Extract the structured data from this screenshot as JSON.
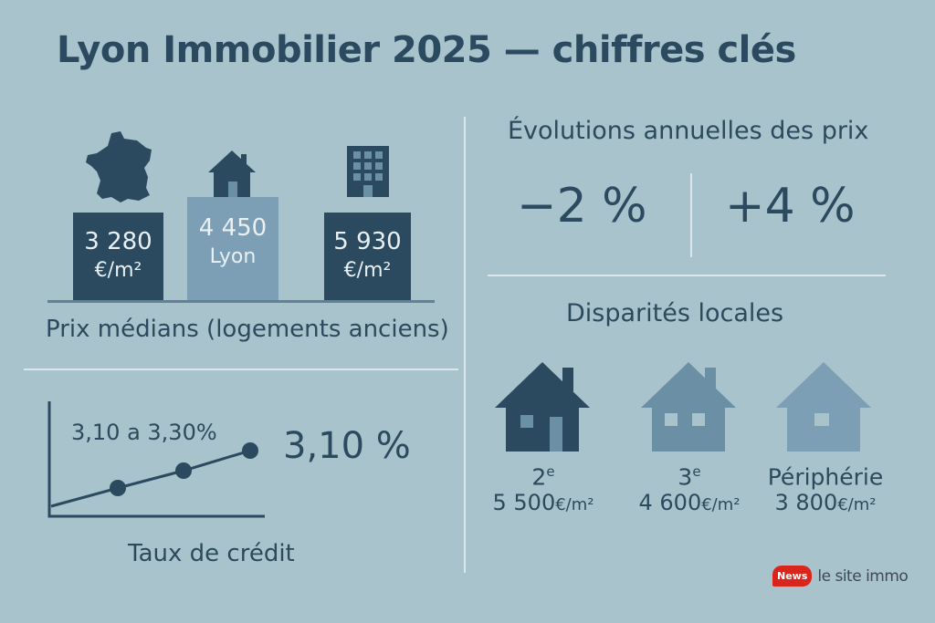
{
  "title": "Lyon Immobilier 2025 — chiffres clés",
  "prix_medians": {
    "caption": "Prix médians (logements anciens)",
    "bars": [
      {
        "line1": "3 280",
        "line2": "€/m²",
        "icon": "france-map-icon"
      },
      {
        "line1": "4 450",
        "line2": "Lyon",
        "icon": "house-icon"
      },
      {
        "line1": "5 930",
        "line2": "€/m²",
        "icon": "building-icon"
      }
    ]
  },
  "evolutions": {
    "title": "Évolutions annuelles des prix",
    "values": [
      "−2 %",
      "+4 %"
    ]
  },
  "disparites": {
    "title": "Disparités locales",
    "districts": [
      {
        "num": "2",
        "sup": "e",
        "price": "5 500",
        "unit": "€/m²",
        "icon": "house-icon"
      },
      {
        "num": "3",
        "sup": "e",
        "price": "4 600",
        "unit": "€/m²",
        "icon": "house-icon"
      },
      {
        "num": "Périphérie",
        "sup": "",
        "price": "3 800",
        "unit": "€/m²",
        "icon": "house-icon"
      }
    ]
  },
  "taux": {
    "range": "3,10 a 3,30%",
    "value": "3,10 %",
    "caption": "Taux de crédit"
  },
  "logo": {
    "badge": "News",
    "text": "le site immo"
  },
  "colors": {
    "background": "#a9c3cd",
    "dark": "#2b4a60",
    "mid": "#6b90a6",
    "light": "#7c9fb5",
    "divider": "#dbe7eb"
  }
}
